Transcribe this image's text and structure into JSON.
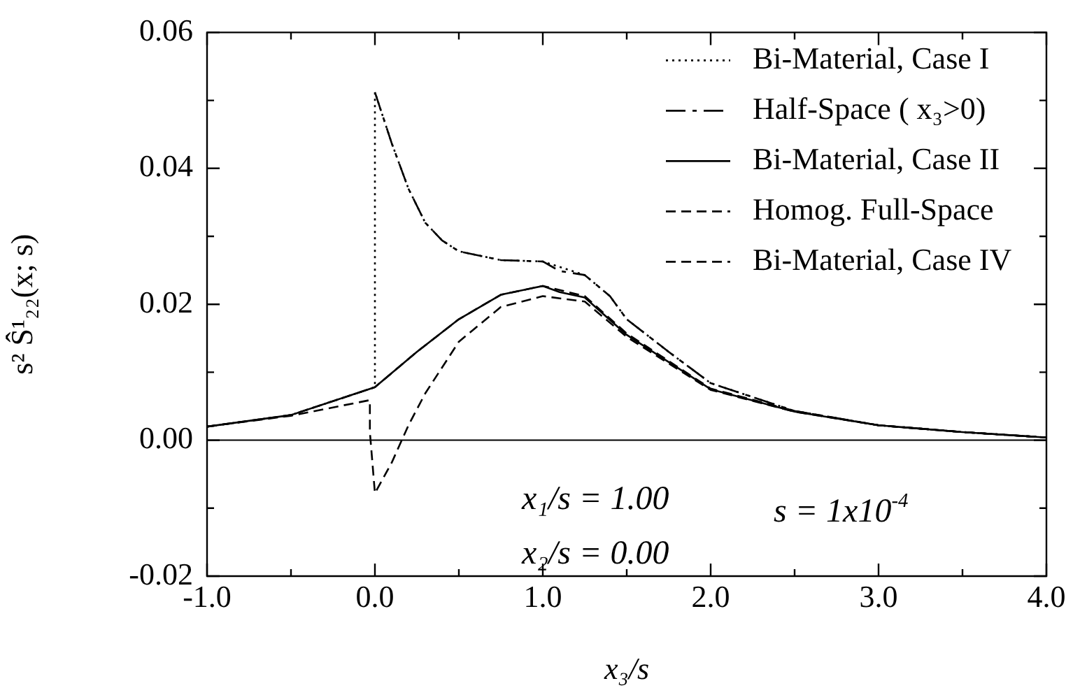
{
  "chart_data": {
    "type": "line",
    "xlabel": "x₃/s",
    "ylabel": "s² Ŝ¹₂₂(x; s)",
    "xlim": [
      -1,
      4
    ],
    "ylim": [
      -0.02,
      0.06
    ],
    "xticks": [
      {
        "value": -1,
        "label": "-1.0"
      },
      {
        "value": -0.5,
        "label": null
      },
      {
        "value": 0,
        "label": "0.0"
      },
      {
        "value": 0.5,
        "label": null
      },
      {
        "value": 1,
        "label": "1.0"
      },
      {
        "value": 1.5,
        "label": null
      },
      {
        "value": 2,
        "label": "2.0"
      },
      {
        "value": 2.5,
        "label": null
      },
      {
        "value": 3,
        "label": "3.0"
      },
      {
        "value": 3.5,
        "label": null
      },
      {
        "value": 4,
        "label": "4.0"
      }
    ],
    "yticks": [
      {
        "value": -0.02,
        "label": "-0.02"
      },
      {
        "value": -0.01,
        "label": null
      },
      {
        "value": 0,
        "label": "0.00"
      },
      {
        "value": 0.01,
        "label": null
      },
      {
        "value": 0.02,
        "label": "0.02"
      },
      {
        "value": 0.03,
        "label": null
      },
      {
        "value": 0.04,
        "label": "0.04"
      },
      {
        "value": 0.05,
        "label": null
      },
      {
        "value": 0.06,
        "label": "0.06"
      }
    ],
    "grid": false,
    "legend": "top right",
    "marker": "none",
    "ref_lines": [
      {
        "axis": "y",
        "value": 0,
        "color": "#000000",
        "line_style": "solid"
      }
    ],
    "annotations": [
      "x₁/s = 1.00",
      "x₂/s = 0.00",
      "s = 1x10$^{-4}$"
    ],
    "series": [
      {
        "name": "Bi-Material, Case I",
        "color": "#000000",
        "line_style": "dotted",
        "x": [
          -1,
          -0.5,
          0,
          0,
          0.1,
          0.2,
          0.3,
          0.4,
          0.5,
          0.75,
          1,
          1.25,
          1.4,
          1.5,
          1.75,
          2,
          2.5,
          3,
          3.5,
          4
        ],
        "values": [
          0.002,
          0.0037,
          0.0078,
          0.0512,
          0.0437,
          0.037,
          0.032,
          0.0294,
          0.0278,
          0.0265,
          0.0263,
          0.0243,
          0.0212,
          0.0178,
          0.013,
          0.0084,
          0.0043,
          0.0022,
          0.0012,
          0.0004
        ]
      },
      {
        "name": "Half-Space ( x₃>0)",
        "color": "#000000",
        "line_style": "dashdot",
        "x": [
          0,
          0.1,
          0.2,
          0.3,
          0.4,
          0.5,
          0.75,
          1,
          1.1,
          1.25,
          1.4,
          1.5,
          1.75,
          2,
          2.5,
          3,
          3.5,
          4
        ],
        "values": [
          0.0512,
          0.0437,
          0.037,
          0.032,
          0.0294,
          0.0278,
          0.0265,
          0.0263,
          0.0249,
          0.0243,
          0.0212,
          0.0178,
          0.013,
          0.0084,
          0.0043,
          0.0022,
          0.0012,
          0.0004
        ]
      },
      {
        "name": "Bi-Material, Case II",
        "color": "#000000",
        "line_style": "solid",
        "x": [
          -1,
          -0.5,
          0,
          0.25,
          0.5,
          0.75,
          1,
          1.1,
          1.25,
          1.5,
          2,
          2.5,
          3,
          3.5,
          4
        ],
        "values": [
          0.002,
          0.0037,
          0.0078,
          0.013,
          0.0178,
          0.0214,
          0.0227,
          0.0218,
          0.021,
          0.0155,
          0.0075,
          0.0042,
          0.0022,
          0.0012,
          0.0004
        ]
      },
      {
        "name": "Homog. Full-Space",
        "color": "#000000",
        "line_style": "dashed",
        "x": [
          -1,
          -0.5,
          0,
          0.25,
          0.5,
          0.75,
          1,
          1.1,
          1.25,
          1.5,
          2,
          2.5,
          3,
          3.5,
          4
        ],
        "values": [
          0.002,
          0.0037,
          0.0078,
          0.013,
          0.0178,
          0.0214,
          0.0227,
          0.0221,
          0.0212,
          0.0157,
          0.0076,
          0.0043,
          0.0022,
          0.0012,
          0.0004
        ]
      },
      {
        "name": "Bi-Material, Case IV",
        "color": "#000000",
        "line_style": "dashed",
        "x": [
          -1,
          -0.5,
          -0.03,
          -0.03,
          0,
          0.1,
          0.2,
          0.3,
          0.5,
          0.75,
          1,
          1.25,
          1.5,
          2,
          2.5,
          3,
          3.5,
          4
        ],
        "values": [
          0.002,
          0.0036,
          0.0059,
          0.0012,
          -0.0078,
          -0.0033,
          0.0022,
          0.0069,
          0.0145,
          0.0196,
          0.0212,
          0.0204,
          0.0152,
          0.0074,
          0.0042,
          0.0022,
          0.0012,
          0.0004
        ]
      }
    ]
  }
}
